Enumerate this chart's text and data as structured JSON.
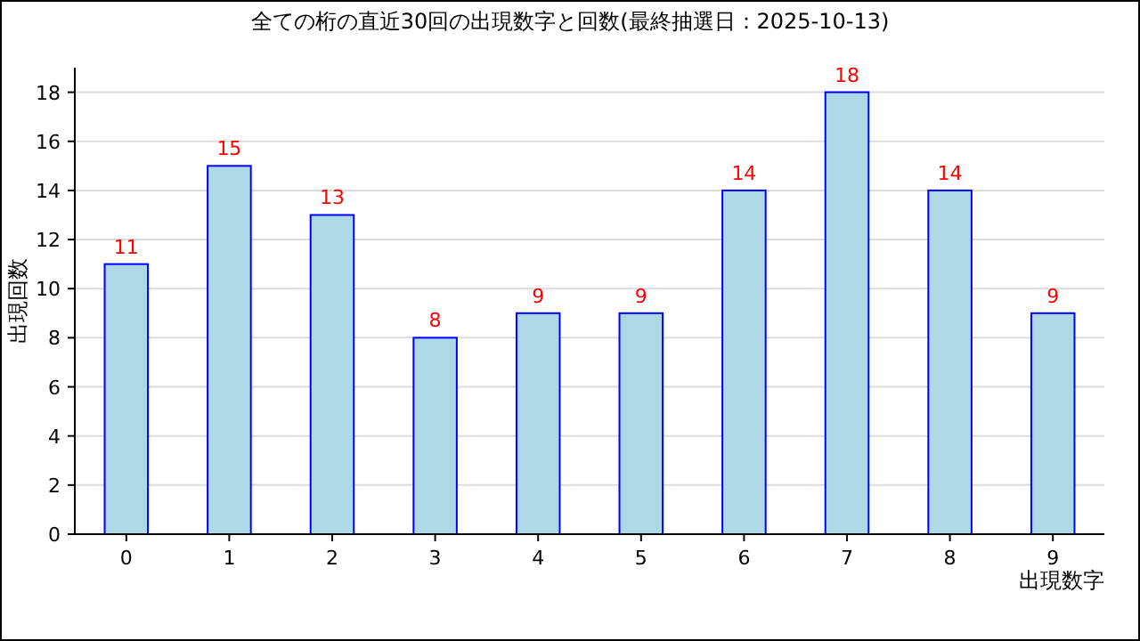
{
  "chart_data": {
    "type": "bar",
    "title": "全ての桁の直近30回の出現数字と回数(最終抽選日：2025-10-13)",
    "xlabel": "出現数字",
    "ylabel": "出現回数",
    "categories": [
      "0",
      "1",
      "2",
      "3",
      "4",
      "5",
      "6",
      "7",
      "8",
      "9"
    ],
    "series": [
      {
        "color": "#add8e6",
        "values": [
          11,
          15,
          13,
          8,
          9,
          9,
          14,
          18,
          14,
          9
        ]
      }
    ],
    "ylim": [
      0,
      19
    ],
    "yticks": [
      0,
      2,
      4,
      6,
      8,
      10,
      12,
      14,
      16,
      18
    ],
    "grid": "y",
    "data_labels": true
  }
}
